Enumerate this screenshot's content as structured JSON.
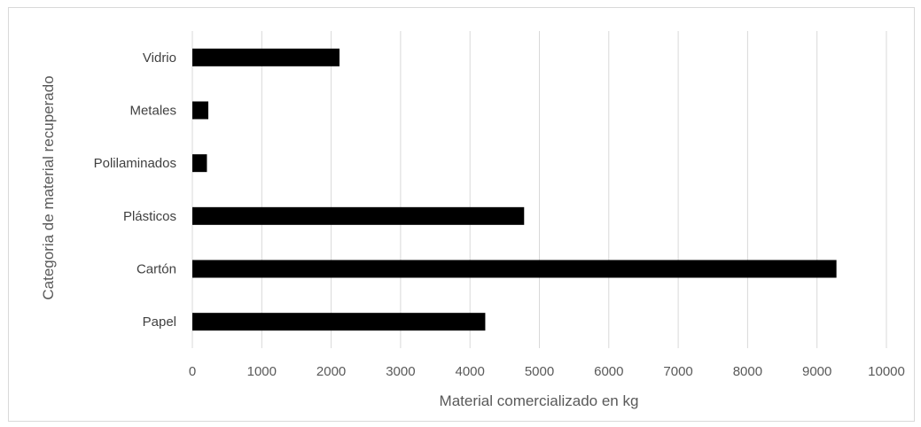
{
  "chart_data": {
    "type": "bar",
    "orientation": "horizontal",
    "categories": [
      "Papel",
      "Cartón",
      "Plásticos",
      "Polilaminados",
      "Metales",
      "Vidrio"
    ],
    "values": [
      4220,
      9280,
      4780,
      210,
      230,
      2120
    ],
    "xlabel": "Material comercializado en kg",
    "ylabel": "Categoria de material recuperado",
    "xlim": [
      0,
      10000
    ],
    "xticks": [
      0,
      1000,
      2000,
      3000,
      4000,
      5000,
      6000,
      7000,
      8000,
      9000,
      10000
    ],
    "grid": "vertical",
    "legend": "none",
    "bar_color": "#000000",
    "grid_color": "#d9d9d9"
  }
}
